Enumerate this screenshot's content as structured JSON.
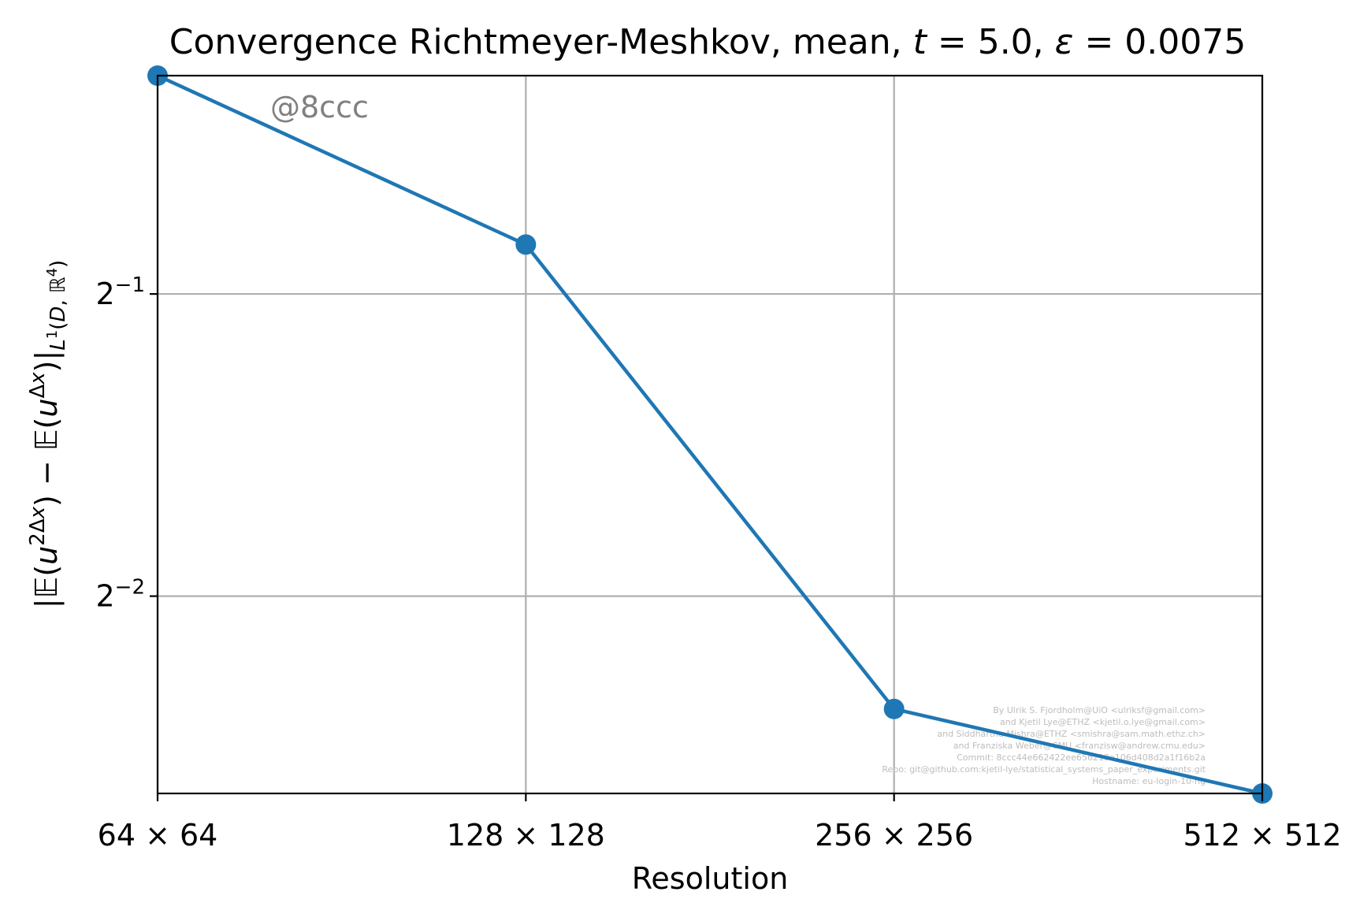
{
  "chart_data": {
    "type": "line",
    "title": "Convergence Richtmeyer-Meshkov, mean, t = 5.0, ε = 0.0075",
    "xlabel": "Resolution",
    "ylabel": "|𝔼(u^{2Δx}) − 𝔼(u^{Δx})|_{L¹(D, ℝ⁴)}",
    "x_scale": "log2",
    "y_scale": "log2",
    "categories": [
      "64 × 64",
      "128 × 128",
      "256 × 256",
      "512 × 512"
    ],
    "x": [
      64,
      128,
      256,
      512
    ],
    "series": [
      {
        "name": "",
        "color": "#1f77b4",
        "values": [
          0.825,
          0.56,
          0.193,
          0.159
        ]
      }
    ],
    "y_ticks": [
      {
        "value": 0.5,
        "base": "2",
        "exp": "−1"
      },
      {
        "value": 0.25,
        "base": "2",
        "exp": "−2"
      }
    ],
    "xlim": [
      64,
      512
    ],
    "ylim": [
      0.159,
      0.825
    ],
    "grid": true,
    "legend": "none",
    "annotation": "@8ccc",
    "credits": [
      "By Ulrik S. Fjordholm@UiO <ulriksf@gmail.com>",
      "and Kjetil Lye@ETHZ <kjetil.o.lye@gmail.com>",
      "and Siddhartha Mishra@ETHZ <smishra@sam.math.ethz.ch>",
      "and Franziska Weber@CMU <franzisw@andrew.cmu.edu>",
      "Commit: 8ccc44e662422ee656219e106d408d2a1f16b2a",
      "Repo: git@github.com:kjetil-lye/statistical_systems_paper_experiments.git",
      "Hostname: eu-login-10-ng"
    ]
  }
}
